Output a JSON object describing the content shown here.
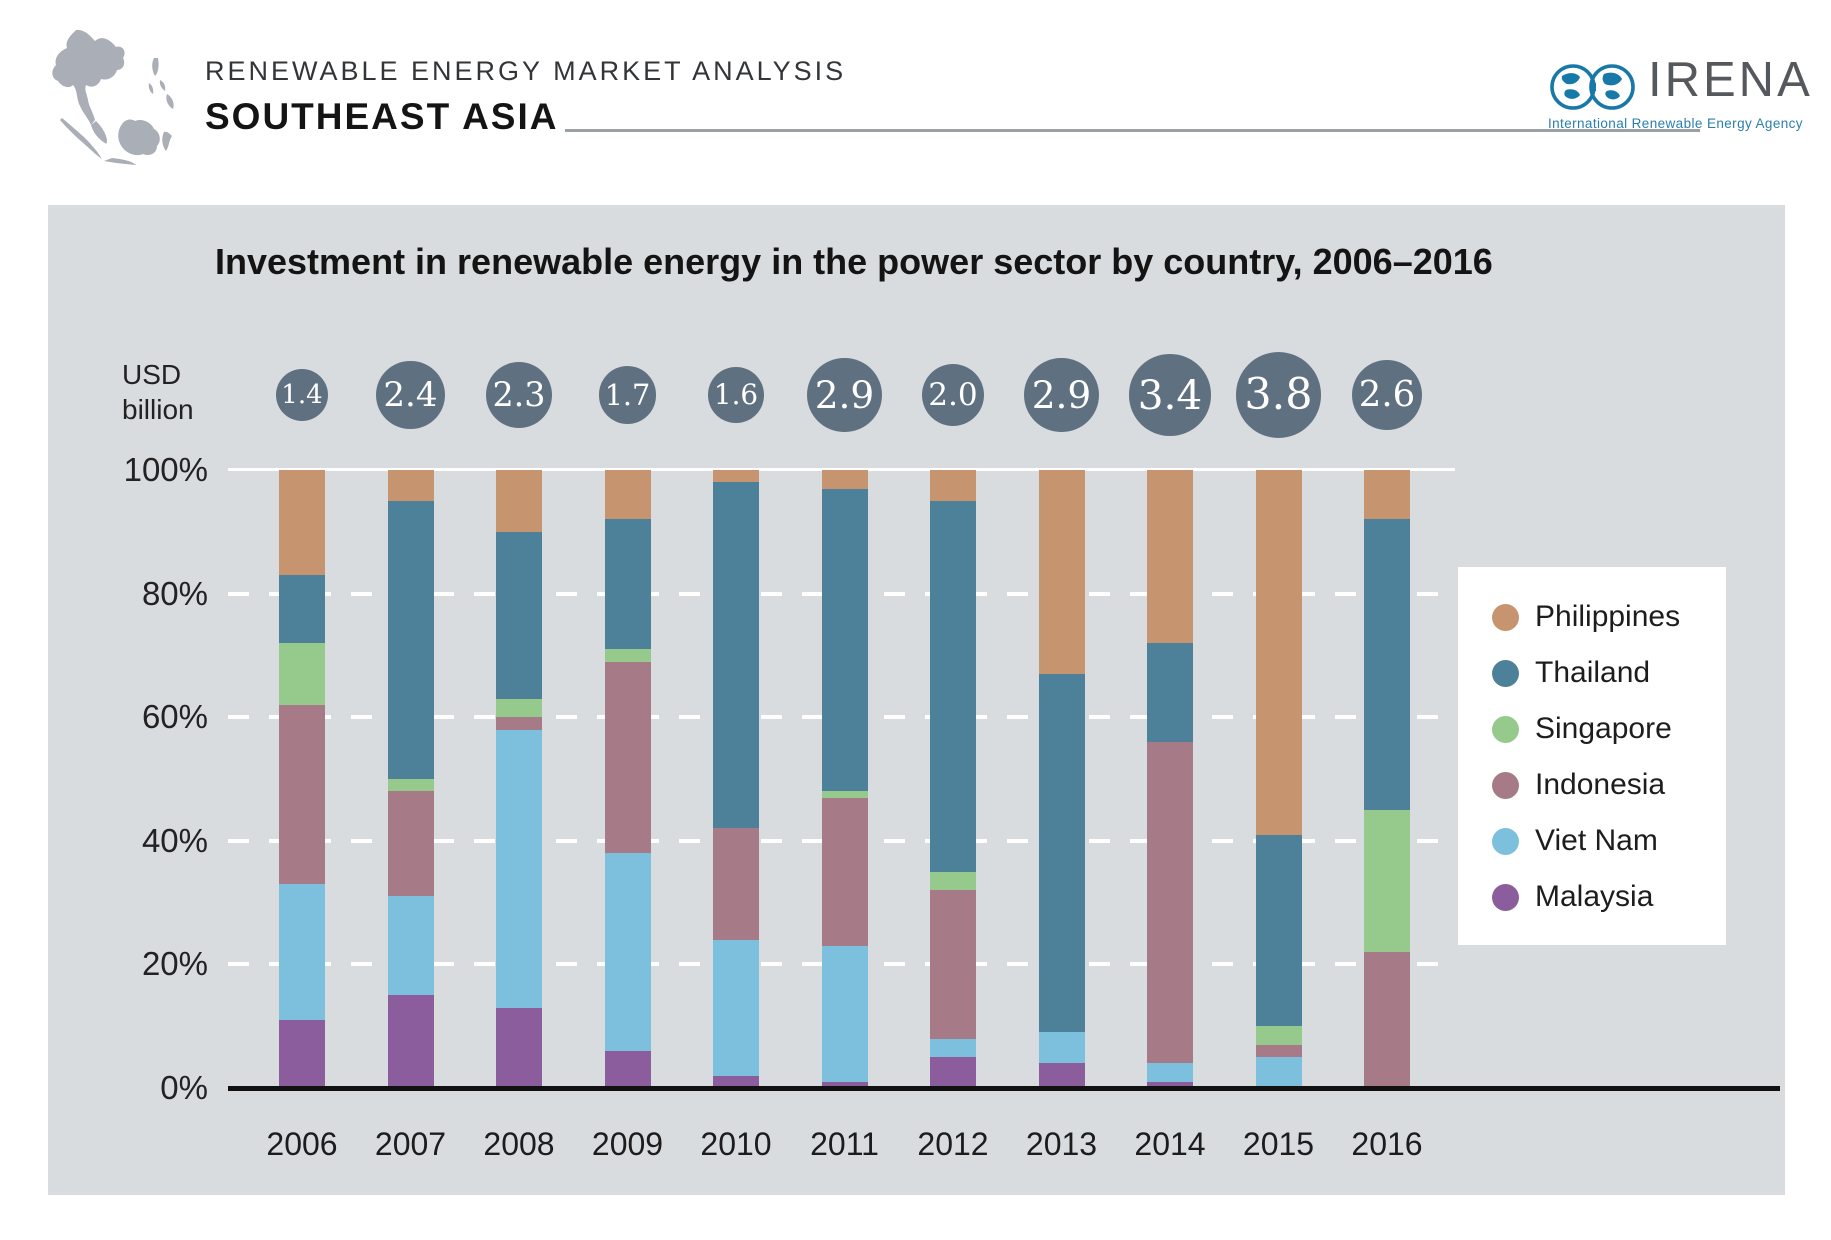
{
  "header": {
    "kicker": "RENEWABLE ENERGY MARKET ANALYSIS",
    "region": "SOUTHEAST ASIA",
    "logo": {
      "name": "IRENA",
      "tagline": "International Renewable Energy Agency",
      "brand_blue": "#1878a8",
      "brand_gray": "#55585c"
    },
    "map_icon": "southeast-asia-map"
  },
  "panel": {
    "background": "#d9dcdf",
    "unit_label": "USD billion"
  },
  "chart_data": {
    "type": "bar",
    "stacked": true,
    "normalized_percent": true,
    "title": "Investment in renewable energy in the power sector by country, 2006–2016",
    "categories": [
      "2006",
      "2007",
      "2008",
      "2009",
      "2010",
      "2011",
      "2012",
      "2013",
      "2014",
      "2015",
      "2016"
    ],
    "totals_usd_billion": [
      1.4,
      2.4,
      2.3,
      1.7,
      1.6,
      2.9,
      2.0,
      2.9,
      3.4,
      3.8,
      2.6
    ],
    "totals_labels": [
      "1.4",
      "2.4",
      "2.3",
      "1.7",
      "1.6",
      "2.9",
      "2.0",
      "2.9",
      "3.4",
      "3.8",
      "2.6"
    ],
    "series": [
      {
        "name": "Philippines",
        "color": "#c6946f",
        "values": [
          17,
          5,
          10,
          8,
          2,
          3,
          5,
          33,
          28,
          59,
          8
        ]
      },
      {
        "name": "Thailand",
        "color": "#4d8199",
        "values": [
          11,
          45,
          27,
          21,
          56,
          49,
          60,
          58,
          16,
          31,
          47
        ]
      },
      {
        "name": "Singapore",
        "color": "#95ca8c",
        "values": [
          10,
          2,
          3,
          2,
          0,
          1,
          3,
          0,
          0,
          3,
          23
        ]
      },
      {
        "name": "Indonesia",
        "color": "#a67a87",
        "values": [
          29,
          17,
          2,
          31,
          18,
          24,
          24,
          0,
          52,
          2,
          22
        ]
      },
      {
        "name": "Viet Nam",
        "color": "#7cc0dd",
        "values": [
          22,
          16,
          45,
          32,
          22,
          22,
          3,
          5,
          3,
          5,
          0
        ]
      },
      {
        "name": "Malaysia",
        "color": "#8b5d9c",
        "values": [
          11,
          15,
          13,
          6,
          2,
          1,
          5,
          4,
          1,
          0,
          0
        ]
      }
    ],
    "y_ticks": {
      "labels": [
        "100%",
        "80%",
        "60%",
        "40%",
        "20%",
        "0%"
      ],
      "percents": [
        100,
        80,
        60,
        40,
        20,
        0
      ]
    },
    "ylim": [
      0,
      100
    ],
    "grid": "horizontal-dashed-white",
    "legend_position": "right",
    "bubble_color": "#5f7181"
  }
}
